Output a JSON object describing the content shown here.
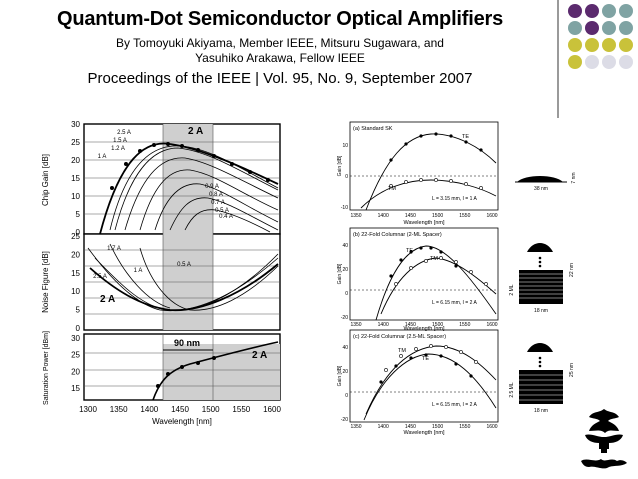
{
  "header": {
    "title": "Quantum-Dot Semiconductor Optical Amplifiers",
    "authors_line1": "By Tomoyuki Akiyama, Member IEEE, Mitsuru Sugawara, and",
    "authors_line2": "Yasuhiko Arakawa, Fellow IEEE",
    "journal": "Proceedings of the IEEE | Vol. 95, No. 9, September 2007"
  },
  "decor": {
    "dot_colors": [
      "#5b2a6e",
      "#5b2a6e",
      "#7fa3a3",
      "#7fa3a3",
      "#7fa3a3",
      "#5b2a6e",
      "#7fa3a3",
      "#7fa3a3",
      "#c9c23a",
      "#c9c23a",
      "#c9c23a",
      "#c9c23a",
      "#c9c23a",
      "#dcdce6",
      "#dcdce6",
      "#dcdce6"
    ]
  },
  "left_figure": {
    "xlabel": "Wavelength [nm]",
    "x_ticks": [
      "1300",
      "1350",
      "1400",
      "1450",
      "1500",
      "1550",
      "1600"
    ],
    "panel_a": {
      "ylabel": "Chip Gain [dB]",
      "y_ticks": [
        "30",
        "25",
        "20",
        "15",
        "10",
        "5",
        "0"
      ],
      "big_label": "2 A",
      "current_labels": [
        "2.5 A",
        "1.5 A",
        "1.2 A",
        "1 A",
        "0.9 A",
        "0.8 A",
        "0.7 A",
        "0.5 A",
        "0.4 A"
      ]
    },
    "panel_b": {
      "ylabel": "Noise Figure [dB]",
      "y_ticks": [
        "25",
        "20",
        "15",
        "10",
        "5",
        "0"
      ],
      "labels": [
        "1.7 A",
        "1 A",
        "2.5 A",
        "0.5 A"
      ],
      "big_label": "2 A"
    },
    "panel_c": {
      "ylabel": "Saturation Power [dBm]",
      "y_ticks": [
        "30",
        "25",
        "20",
        "15"
      ],
      "span_label": "90 nm",
      "big_label": "2 A"
    }
  },
  "right_figure": {
    "xlabel": "Wavelength [nm]",
    "x_ticks": [
      "1350",
      "1400",
      "1450",
      "1500",
      "1550",
      "1600"
    ],
    "panel_a": {
      "title": "(a) Standard SK",
      "ylabel": "Gain [dB]",
      "y_ticks": [
        "10",
        "0",
        "-10"
      ],
      "te": "TE",
      "tm": "TM",
      "note": "L = 3.15 mm, I = 1 A"
    },
    "panel_b": {
      "title": "(b) 22-Fold Columnar (2-ML Spacer)",
      "ylabel": "Gain [dB]",
      "y_ticks": [
        "40",
        "20",
        "0",
        "-20"
      ],
      "te": "TE",
      "tm": "TM",
      "note": "L = 6.15 mm, I = 2 A"
    },
    "panel_c": {
      "title": "(c) 22-Fold Columnar (2.5-ML Spacer)",
      "ylabel": "Gain [dB]",
      "y_ticks": [
        "40",
        "20",
        "0",
        "-20"
      ],
      "te": "TE",
      "tm": "TM",
      "note": "L = 6.15 mm, I = 2 A"
    }
  },
  "dots_figure": {
    "a": {
      "width": "38 nm",
      "height": "7 nm"
    },
    "b": {
      "width": "18 nm",
      "height": "22 nm",
      "spacer": "2 ML"
    },
    "c": {
      "width": "18 nm",
      "height": "25 nm",
      "spacer": "2.5 ML"
    }
  }
}
